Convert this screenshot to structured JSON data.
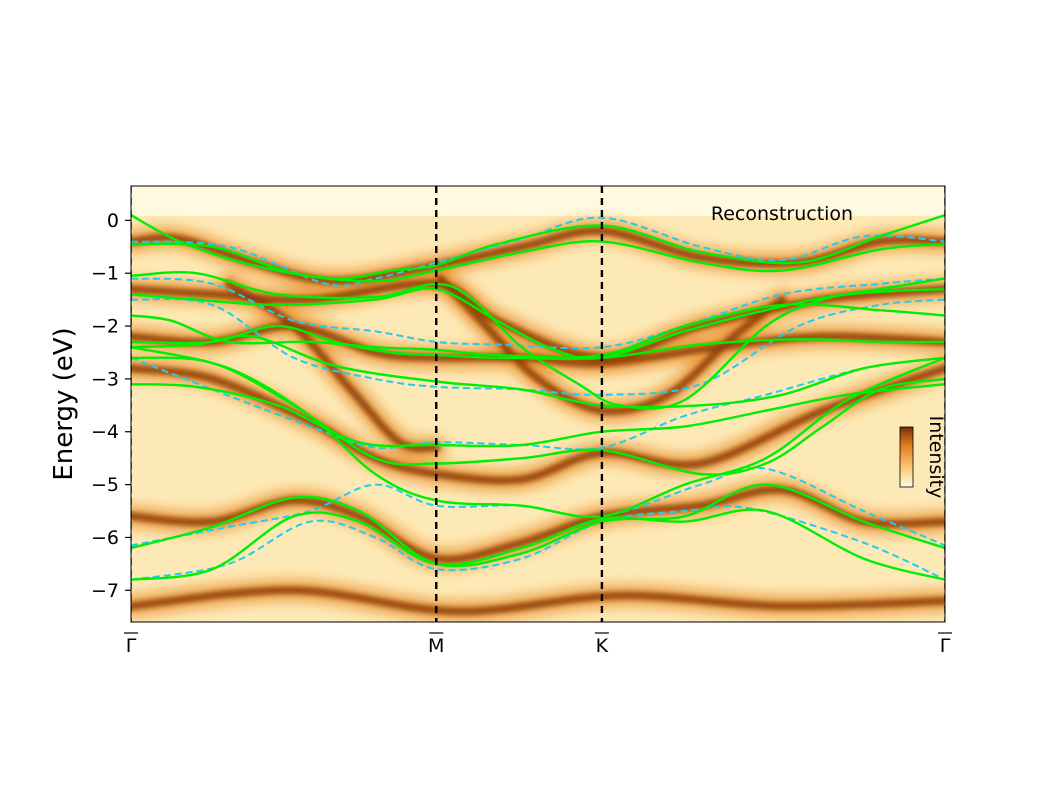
{
  "chart_data": {
    "type": "heatmap",
    "title": "",
    "annotation": "Reconstruction",
    "ylabel": "Energy (eV)",
    "xlabel": "",
    "ylim": [
      -7.6,
      0.65
    ],
    "xlim": [
      0,
      1
    ],
    "y_ticks": [
      0,
      -1,
      -2,
      -3,
      -4,
      -5,
      -6,
      -7
    ],
    "y_tick_labels": [
      "0",
      "−1",
      "−2",
      "−3",
      "−4",
      "−5",
      "−6",
      "−7"
    ],
    "k_points": [
      {
        "label": "Γ",
        "x": 0.0
      },
      {
        "label": "M",
        "x": 0.375
      },
      {
        "label": "K",
        "x": 0.5785
      },
      {
        "label": "Γ",
        "x": 1.0
      }
    ],
    "colorbar": {
      "label": "Intensity",
      "colors": [
        "#fffbe6",
        "#f7c46a",
        "#e07a1f",
        "#7a2e05"
      ]
    },
    "colors": {
      "calculated_solid": "#00ee00",
      "calculated_dashed": "#22ccee",
      "divider": "#000000"
    },
    "solid_bands": [
      [
        [
          0,
          0.1
        ],
        [
          0.06,
          -0.4
        ],
        [
          0.15,
          -0.85
        ],
        [
          0.25,
          -1.1
        ],
        [
          0.32,
          -0.95
        ],
        [
          0.375,
          -0.85
        ],
        [
          0.45,
          -0.45
        ],
        [
          0.5785,
          -0.1
        ],
        [
          0.7,
          -0.6
        ],
        [
          0.82,
          -0.8
        ],
        [
          0.92,
          -0.3
        ],
        [
          1,
          0.1
        ]
      ],
      [
        [
          0,
          -0.45
        ],
        [
          0.1,
          -0.5
        ],
        [
          0.2,
          -1.0
        ],
        [
          0.3,
          -1.15
        ],
        [
          0.375,
          -0.95
        ],
        [
          0.48,
          -0.6
        ],
        [
          0.5785,
          -0.4
        ],
        [
          0.7,
          -0.8
        ],
        [
          0.8,
          -0.95
        ],
        [
          0.92,
          -0.55
        ],
        [
          1,
          -0.45
        ]
      ],
      [
        [
          0,
          -1.05
        ],
        [
          0.08,
          -1.0
        ],
        [
          0.18,
          -1.4
        ],
        [
          0.3,
          -1.45
        ],
        [
          0.375,
          -1.2
        ],
        [
          0.42,
          -1.5
        ],
        [
          0.48,
          -2.4
        ],
        [
          0.55,
          -3.1
        ],
        [
          0.6,
          -3.5
        ],
        [
          0.68,
          -3.4
        ],
        [
          0.78,
          -2.0
        ],
        [
          0.85,
          -1.5
        ],
        [
          0.92,
          -1.3
        ],
        [
          1,
          -1.1
        ]
      ],
      [
        [
          0,
          -1.4
        ],
        [
          0.08,
          -1.5
        ],
        [
          0.18,
          -1.6
        ],
        [
          0.3,
          -1.5
        ],
        [
          0.375,
          -1.3
        ],
        [
          0.45,
          -1.9
        ],
        [
          0.52,
          -2.45
        ],
        [
          0.5785,
          -2.6
        ],
        [
          0.68,
          -2.1
        ],
        [
          0.78,
          -1.7
        ],
        [
          0.88,
          -1.4
        ],
        [
          1,
          -1.3
        ]
      ],
      [
        [
          0,
          -1.8
        ],
        [
          0.05,
          -1.9
        ],
        [
          0.12,
          -2.3
        ],
        [
          0.22,
          -2.3
        ],
        [
          0.3,
          -2.4
        ],
        [
          0.375,
          -2.45
        ],
        [
          0.45,
          -2.55
        ],
        [
          0.5785,
          -2.55
        ],
        [
          0.68,
          -2.0
        ],
        [
          0.8,
          -1.6
        ],
        [
          0.92,
          -1.7
        ],
        [
          1,
          -1.8
        ]
      ],
      [
        [
          0,
          -2.3
        ],
        [
          0.1,
          -2.3
        ],
        [
          0.18,
          -2.0
        ],
        [
          0.25,
          -2.3
        ],
        [
          0.32,
          -2.5
        ],
        [
          0.375,
          -2.55
        ],
        [
          0.45,
          -2.6
        ],
        [
          0.5785,
          -2.6
        ],
        [
          0.7,
          -2.35
        ],
        [
          0.82,
          -2.25
        ],
        [
          0.92,
          -2.3
        ],
        [
          1,
          -2.3
        ]
      ],
      [
        [
          0,
          -2.4
        ],
        [
          0.08,
          -2.35
        ],
        [
          0.15,
          -2.2
        ],
        [
          0.25,
          -2.75
        ],
        [
          0.375,
          -3.05
        ],
        [
          0.48,
          -3.2
        ],
        [
          0.5785,
          -3.5
        ],
        [
          0.7,
          -3.5
        ],
        [
          0.8,
          -3.3
        ],
        [
          0.9,
          -2.8
        ],
        [
          1,
          -2.6
        ]
      ],
      [
        [
          0,
          -2.6
        ],
        [
          0.1,
          -2.7
        ],
        [
          0.2,
          -3.5
        ],
        [
          0.3,
          -4.5
        ],
        [
          0.375,
          -4.6
        ],
        [
          0.48,
          -4.5
        ],
        [
          0.5785,
          -4.35
        ],
        [
          0.7,
          -4.8
        ],
        [
          0.78,
          -4.6
        ],
        [
          0.85,
          -3.9
        ],
        [
          0.92,
          -3.2
        ],
        [
          1,
          -3.0
        ]
      ],
      [
        [
          0,
          -3.1
        ],
        [
          0.08,
          -3.15
        ],
        [
          0.18,
          -3.5
        ],
        [
          0.28,
          -4.2
        ],
        [
          0.375,
          -4.25
        ],
        [
          0.48,
          -4.25
        ],
        [
          0.5785,
          -4.0
        ],
        [
          0.68,
          -3.9
        ],
        [
          0.78,
          -3.6
        ],
        [
          0.88,
          -3.3
        ],
        [
          1,
          -3.1
        ]
      ],
      [
        [
          0,
          -2.4
        ],
        [
          0.12,
          -2.8
        ],
        [
          0.22,
          -3.7
        ],
        [
          0.3,
          -4.8
        ],
        [
          0.375,
          -5.3
        ],
        [
          0.48,
          -5.4
        ],
        [
          0.5785,
          -5.6
        ],
        [
          0.68,
          -5.0
        ],
        [
          0.78,
          -4.5
        ],
        [
          0.88,
          -3.4
        ],
        [
          1,
          -2.6
        ]
      ],
      [
        [
          0,
          -6.2
        ],
        [
          0.1,
          -5.8
        ],
        [
          0.2,
          -5.25
        ],
        [
          0.28,
          -5.5
        ],
        [
          0.375,
          -6.5
        ],
        [
          0.48,
          -6.3
        ],
        [
          0.5785,
          -5.7
        ],
        [
          0.68,
          -5.6
        ],
        [
          0.78,
          -5.0
        ],
        [
          0.9,
          -5.7
        ],
        [
          1,
          -6.2
        ]
      ],
      [
        [
          0,
          -6.8
        ],
        [
          0.1,
          -6.6
        ],
        [
          0.2,
          -5.6
        ],
        [
          0.28,
          -5.7
        ],
        [
          0.375,
          -6.5
        ],
        [
          0.48,
          -6.2
        ],
        [
          0.5785,
          -5.65
        ],
        [
          0.68,
          -5.7
        ],
        [
          0.78,
          -5.5
        ],
        [
          0.9,
          -6.4
        ],
        [
          1,
          -6.8
        ]
      ]
    ],
    "dashed_bands": [
      [
        [
          0,
          -0.4
        ],
        [
          0.12,
          -0.5
        ],
        [
          0.24,
          -1.2
        ],
        [
          0.3,
          -1.1
        ],
        [
          0.375,
          -0.8
        ],
        [
          0.48,
          -0.35
        ],
        [
          0.5785,
          0.05
        ],
        [
          0.7,
          -0.5
        ],
        [
          0.8,
          -0.75
        ],
        [
          0.9,
          -0.3
        ],
        [
          1,
          -0.4
        ]
      ],
      [
        [
          0,
          -1.1
        ],
        [
          0.1,
          -1.2
        ],
        [
          0.2,
          -1.9
        ],
        [
          0.3,
          -2.1
        ],
        [
          0.375,
          -2.3
        ],
        [
          0.45,
          -2.35
        ],
        [
          0.5785,
          -2.4
        ],
        [
          0.68,
          -2.0
        ],
        [
          0.8,
          -1.4
        ],
        [
          0.92,
          -1.2
        ],
        [
          1,
          -1.1
        ]
      ],
      [
        [
          0,
          -1.5
        ],
        [
          0.1,
          -1.6
        ],
        [
          0.2,
          -2.6
        ],
        [
          0.3,
          -3.0
        ],
        [
          0.375,
          -3.15
        ],
        [
          0.48,
          -3.2
        ],
        [
          0.5785,
          -3.3
        ],
        [
          0.7,
          -3.1
        ],
        [
          0.82,
          -2.0
        ],
        [
          0.92,
          -1.6
        ],
        [
          1,
          -1.5
        ]
      ],
      [
        [
          0,
          -2.6
        ],
        [
          0.1,
          -3.2
        ],
        [
          0.22,
          -3.9
        ],
        [
          0.3,
          -4.3
        ],
        [
          0.375,
          -4.2
        ],
        [
          0.48,
          -4.25
        ],
        [
          0.5785,
          -4.3
        ],
        [
          0.68,
          -3.7
        ],
        [
          0.78,
          -3.3
        ],
        [
          0.9,
          -2.8
        ],
        [
          1,
          -2.6
        ]
      ],
      [
        [
          0,
          -6.15
        ],
        [
          0.12,
          -5.8
        ],
        [
          0.22,
          -5.5
        ],
        [
          0.3,
          -5.0
        ],
        [
          0.375,
          -5.4
        ],
        [
          0.48,
          -5.4
        ],
        [
          0.5785,
          -5.6
        ],
        [
          0.7,
          -5.0
        ],
        [
          0.78,
          -4.7
        ],
        [
          0.9,
          -5.5
        ],
        [
          1,
          -6.15
        ]
      ],
      [
        [
          0,
          -6.8
        ],
        [
          0.12,
          -6.5
        ],
        [
          0.22,
          -5.7
        ],
        [
          0.3,
          -6.0
        ],
        [
          0.375,
          -6.6
        ],
        [
          0.48,
          -6.4
        ],
        [
          0.5785,
          -5.7
        ],
        [
          0.68,
          -5.5
        ],
        [
          0.76,
          -5.45
        ],
        [
          0.9,
          -6.1
        ],
        [
          1,
          -6.8
        ]
      ]
    ],
    "intensity_ridges": [
      [
        [
          0,
          -0.4
        ],
        [
          0.06,
          -0.35
        ],
        [
          0.15,
          -0.8
        ],
        [
          0.25,
          -1.15
        ],
        [
          0.375,
          -0.85
        ],
        [
          0.48,
          -0.5
        ],
        [
          0.5785,
          -0.2
        ],
        [
          0.7,
          -0.7
        ],
        [
          0.82,
          -0.8
        ],
        [
          0.92,
          -0.4
        ],
        [
          1,
          -0.4
        ]
      ],
      [
        [
          0,
          -1.3
        ],
        [
          0.1,
          -1.4
        ],
        [
          0.22,
          -1.5
        ],
        [
          0.375,
          -1.2
        ],
        [
          0.45,
          -1.9
        ],
        [
          0.5785,
          -2.6
        ],
        [
          0.7,
          -2.0
        ],
        [
          0.85,
          -1.5
        ],
        [
          1,
          -1.3
        ]
      ],
      [
        [
          0,
          -2.2
        ],
        [
          0.1,
          -2.3
        ],
        [
          0.2,
          -2.0
        ],
        [
          0.3,
          -2.5
        ],
        [
          0.375,
          -2.6
        ],
        [
          0.48,
          -2.6
        ],
        [
          0.5785,
          -2.7
        ],
        [
          0.72,
          -2.4
        ],
        [
          0.85,
          -2.2
        ],
        [
          1,
          -2.3
        ]
      ],
      [
        [
          0,
          -2.8
        ],
        [
          0.1,
          -3.0
        ],
        [
          0.22,
          -3.8
        ],
        [
          0.3,
          -4.5
        ],
        [
          0.375,
          -4.8
        ],
        [
          0.48,
          -4.9
        ],
        [
          0.5785,
          -4.4
        ],
        [
          0.7,
          -4.6
        ],
        [
          0.85,
          -3.6
        ],
        [
          1,
          -2.8
        ]
      ],
      [
        [
          0.12,
          -1.2
        ],
        [
          0.2,
          -2.0
        ],
        [
          0.27,
          -3.2
        ],
        [
          0.33,
          -4.2
        ],
        [
          0.375,
          -4.3
        ]
      ],
      [
        [
          0.38,
          -1.1
        ],
        [
          0.43,
          -1.9
        ],
        [
          0.5,
          -3.0
        ],
        [
          0.5785,
          -3.6
        ],
        [
          0.66,
          -3.3
        ],
        [
          0.74,
          -2.2
        ],
        [
          0.8,
          -1.5
        ]
      ],
      [
        [
          0,
          -5.6
        ],
        [
          0.1,
          -5.7
        ],
        [
          0.2,
          -5.3
        ],
        [
          0.28,
          -5.6
        ],
        [
          0.375,
          -6.4
        ],
        [
          0.48,
          -6.1
        ],
        [
          0.5785,
          -5.6
        ],
        [
          0.7,
          -5.4
        ],
        [
          0.8,
          -5.1
        ],
        [
          0.9,
          -5.7
        ],
        [
          1,
          -5.7
        ]
      ],
      [
        [
          0,
          -7.3
        ],
        [
          0.2,
          -7.0
        ],
        [
          0.4,
          -7.4
        ],
        [
          0.6,
          -7.1
        ],
        [
          0.8,
          -7.3
        ],
        [
          1,
          -7.2
        ]
      ]
    ]
  }
}
